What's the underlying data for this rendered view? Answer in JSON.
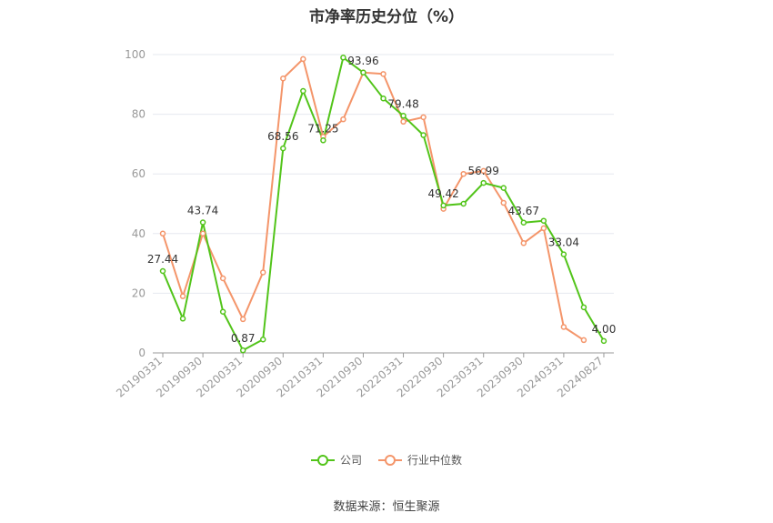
{
  "chart_data": {
    "type": "line",
    "title": "市净率历史分位（%）",
    "source": "数据来源：恒生聚源",
    "ylim": [
      0,
      100
    ],
    "yticks": [
      0,
      20,
      40,
      60,
      80,
      100
    ],
    "x": [
      "20190331",
      "20190630",
      "20190930",
      "20191231",
      "20200331",
      "20200630",
      "20200930",
      "20201231",
      "20210331",
      "20210630",
      "20210930",
      "20211231",
      "20220331",
      "20220630",
      "20220930",
      "20221231",
      "20230331",
      "20230630",
      "20230930",
      "20231231",
      "20240331",
      "20240630",
      "20240827"
    ],
    "xtick_labels": [
      "20190331",
      "20190930",
      "20200331",
      "20200930",
      "20210331",
      "20210930",
      "20220331",
      "20220930",
      "20230331",
      "20230930",
      "20240331",
      "20240827"
    ],
    "grid": true,
    "legend_position": "bottom",
    "series": [
      {
        "name": "公司",
        "color": "#52c41a",
        "values": [
          27.44,
          11.5,
          43.74,
          13.8,
          0.87,
          4.5,
          68.56,
          87.8,
          71.25,
          99.0,
          93.96,
          85.3,
          79.48,
          73.0,
          49.42,
          50.0,
          56.99,
          55.3,
          43.67,
          44.3,
          33.04,
          15.3,
          4.0
        ],
        "labels": [
          "27.44",
          null,
          "43.74",
          null,
          "0.87",
          null,
          "68.56",
          null,
          "71.25",
          null,
          "93.96",
          null,
          "79.48",
          null,
          "49.42",
          null,
          "56.99",
          null,
          "43.67",
          null,
          "33.04",
          null,
          "4.00"
        ]
      },
      {
        "name": "行业中位数",
        "color": "#f4956a",
        "values": [
          40.0,
          19.0,
          40.0,
          25.0,
          11.3,
          27.0,
          92.0,
          98.5,
          72.5,
          78.3,
          94.0,
          93.5,
          77.5,
          79.0,
          48.3,
          60.0,
          61.0,
          50.3,
          36.8,
          41.8,
          8.7,
          4.3,
          null
        ]
      }
    ]
  }
}
